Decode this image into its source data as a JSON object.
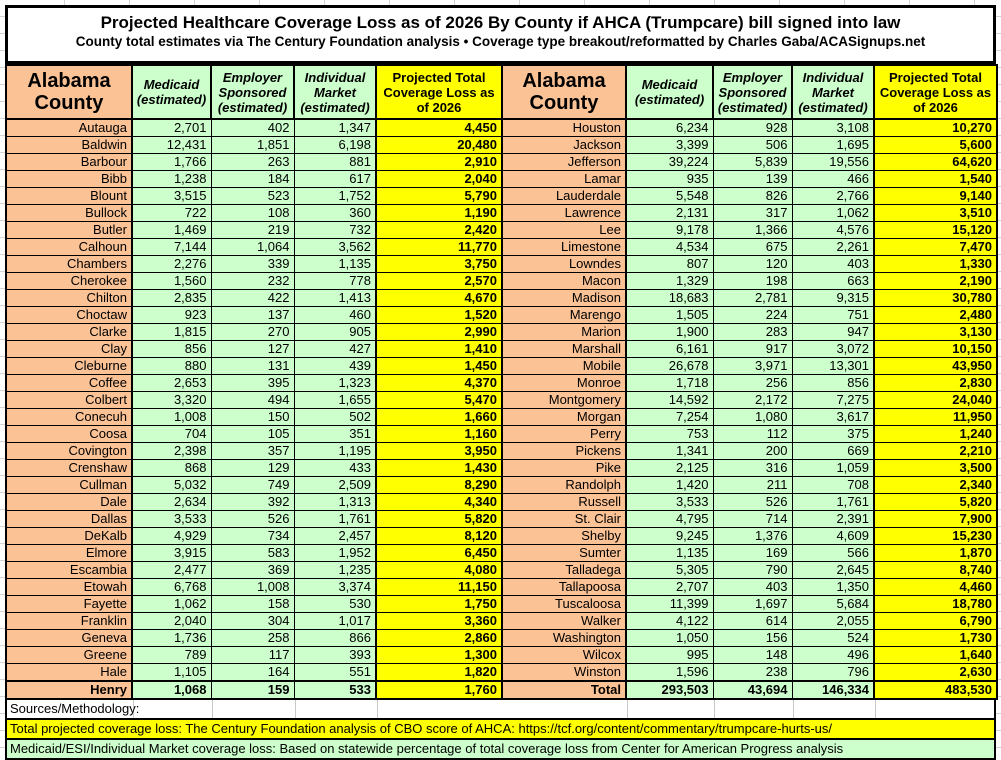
{
  "title": "Projected Healthcare Coverage Loss as of 2026 By County if AHCA (Trumpcare) bill signed into law",
  "subtitle": "County total estimates via The Century Foundation analysis • Coverage type breakout/reformatted by Charles Gaba/ACASignups.net",
  "colors": {
    "county_column": "#FBC295",
    "estimate_columns": "#CCFFCC",
    "projected_column": "#FFFF00",
    "border": "#000000"
  },
  "table": {
    "headers": {
      "county": "Alabama County",
      "medicaid": "Medicaid (estimated)",
      "employer": "Employer Sponsored (estimated)",
      "individual": "Individual Market (estimated)",
      "projected": "Projected Total Coverage Loss as of 2026"
    },
    "total_label": "Total",
    "left_rows": [
      [
        "Autauga",
        "2,701",
        "402",
        "1,347",
        "4,450"
      ],
      [
        "Baldwin",
        "12,431",
        "1,851",
        "6,198",
        "20,480"
      ],
      [
        "Barbour",
        "1,766",
        "263",
        "881",
        "2,910"
      ],
      [
        "Bibb",
        "1,238",
        "184",
        "617",
        "2,040"
      ],
      [
        "Blount",
        "3,515",
        "523",
        "1,752",
        "5,790"
      ],
      [
        "Bullock",
        "722",
        "108",
        "360",
        "1,190"
      ],
      [
        "Butler",
        "1,469",
        "219",
        "732",
        "2,420"
      ],
      [
        "Calhoun",
        "7,144",
        "1,064",
        "3,562",
        "11,770"
      ],
      [
        "Chambers",
        "2,276",
        "339",
        "1,135",
        "3,750"
      ],
      [
        "Cherokee",
        "1,560",
        "232",
        "778",
        "2,570"
      ],
      [
        "Chilton",
        "2,835",
        "422",
        "1,413",
        "4,670"
      ],
      [
        "Choctaw",
        "923",
        "137",
        "460",
        "1,520"
      ],
      [
        "Clarke",
        "1,815",
        "270",
        "905",
        "2,990"
      ],
      [
        "Clay",
        "856",
        "127",
        "427",
        "1,410"
      ],
      [
        "Cleburne",
        "880",
        "131",
        "439",
        "1,450"
      ],
      [
        "Coffee",
        "2,653",
        "395",
        "1,323",
        "4,370"
      ],
      [
        "Colbert",
        "3,320",
        "494",
        "1,655",
        "5,470"
      ],
      [
        "Conecuh",
        "1,008",
        "150",
        "502",
        "1,660"
      ],
      [
        "Coosa",
        "704",
        "105",
        "351",
        "1,160"
      ],
      [
        "Covington",
        "2,398",
        "357",
        "1,195",
        "3,950"
      ],
      [
        "Crenshaw",
        "868",
        "129",
        "433",
        "1,430"
      ],
      [
        "Cullman",
        "5,032",
        "749",
        "2,509",
        "8,290"
      ],
      [
        "Dale",
        "2,634",
        "392",
        "1,313",
        "4,340"
      ],
      [
        "Dallas",
        "3,533",
        "526",
        "1,761",
        "5,820"
      ],
      [
        "DeKalb",
        "4,929",
        "734",
        "2,457",
        "8,120"
      ],
      [
        "Elmore",
        "3,915",
        "583",
        "1,952",
        "6,450"
      ],
      [
        "Escambia",
        "2,477",
        "369",
        "1,235",
        "4,080"
      ],
      [
        "Etowah",
        "6,768",
        "1,008",
        "3,374",
        "11,150"
      ],
      [
        "Fayette",
        "1,062",
        "158",
        "530",
        "1,750"
      ],
      [
        "Franklin",
        "2,040",
        "304",
        "1,017",
        "3,360"
      ],
      [
        "Geneva",
        "1,736",
        "258",
        "866",
        "2,860"
      ],
      [
        "Greene",
        "789",
        "117",
        "393",
        "1,300"
      ],
      [
        "Hale",
        "1,105",
        "164",
        "551",
        "1,820"
      ],
      [
        "Henry",
        "1,068",
        "159",
        "533",
        "1,760"
      ]
    ],
    "right_rows": [
      [
        "Houston",
        "6,234",
        "928",
        "3,108",
        "10,270"
      ],
      [
        "Jackson",
        "3,399",
        "506",
        "1,695",
        "5,600"
      ],
      [
        "Jefferson",
        "39,224",
        "5,839",
        "19,556",
        "64,620"
      ],
      [
        "Lamar",
        "935",
        "139",
        "466",
        "1,540"
      ],
      [
        "Lauderdale",
        "5,548",
        "826",
        "2,766",
        "9,140"
      ],
      [
        "Lawrence",
        "2,131",
        "317",
        "1,062",
        "3,510"
      ],
      [
        "Lee",
        "9,178",
        "1,366",
        "4,576",
        "15,120"
      ],
      [
        "Limestone",
        "4,534",
        "675",
        "2,261",
        "7,470"
      ],
      [
        "Lowndes",
        "807",
        "120",
        "403",
        "1,330"
      ],
      [
        "Macon",
        "1,329",
        "198",
        "663",
        "2,190"
      ],
      [
        "Madison",
        "18,683",
        "2,781",
        "9,315",
        "30,780"
      ],
      [
        "Marengo",
        "1,505",
        "224",
        "751",
        "2,480"
      ],
      [
        "Marion",
        "1,900",
        "283",
        "947",
        "3,130"
      ],
      [
        "Marshall",
        "6,161",
        "917",
        "3,072",
        "10,150"
      ],
      [
        "Mobile",
        "26,678",
        "3,971",
        "13,301",
        "43,950"
      ],
      [
        "Monroe",
        "1,718",
        "256",
        "856",
        "2,830"
      ],
      [
        "Montgomery",
        "14,592",
        "2,172",
        "7,275",
        "24,040"
      ],
      [
        "Morgan",
        "7,254",
        "1,080",
        "3,617",
        "11,950"
      ],
      [
        "Perry",
        "753",
        "112",
        "375",
        "1,240"
      ],
      [
        "Pickens",
        "1,341",
        "200",
        "669",
        "2,210"
      ],
      [
        "Pike",
        "2,125",
        "316",
        "1,059",
        "3,500"
      ],
      [
        "Randolph",
        "1,420",
        "211",
        "708",
        "2,340"
      ],
      [
        "Russell",
        "3,533",
        "526",
        "1,761",
        "5,820"
      ],
      [
        "St. Clair",
        "4,795",
        "714",
        "2,391",
        "7,900"
      ],
      [
        "Shelby",
        "9,245",
        "1,376",
        "4,609",
        "15,230"
      ],
      [
        "Sumter",
        "1,135",
        "169",
        "566",
        "1,870"
      ],
      [
        "Talladega",
        "5,305",
        "790",
        "2,645",
        "8,740"
      ],
      [
        "Tallapoosa",
        "2,707",
        "403",
        "1,350",
        "4,460"
      ],
      [
        "Tuscaloosa",
        "11,399",
        "1,697",
        "5,684",
        "18,780"
      ],
      [
        "Walker",
        "4,122",
        "614",
        "2,055",
        "6,790"
      ],
      [
        "Washington",
        "1,050",
        "156",
        "524",
        "1,730"
      ],
      [
        "Wilcox",
        "995",
        "148",
        "496",
        "1,640"
      ],
      [
        "Winston",
        "1,596",
        "238",
        "796",
        "2,630"
      ],
      [
        "Total",
        "293,503",
        "43,694",
        "146,334",
        "483,530"
      ]
    ]
  },
  "footer": {
    "sources_label": "Sources/Methodology:",
    "total_note": "Total projected coverage loss: The Century Foundation analysis of CBO score of AHCA: https://tcf.org/content/commentary/trumpcare-hurts-us/",
    "breakout_note": "Medicaid/ESI/Individual Market coverage loss: Based on statewide percentage of total coverage loss from Center for American Progress analysis"
  }
}
